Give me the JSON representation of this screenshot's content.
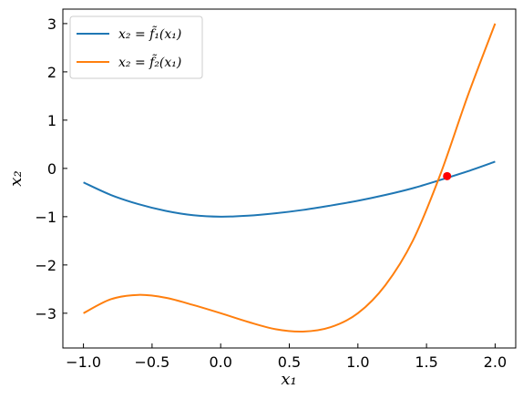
{
  "chart_data": {
    "type": "line",
    "xlabel": "x₁",
    "ylabel": "x₂",
    "xlim": [
      -1.15,
      2.15
    ],
    "ylim": [
      -3.72,
      3.3
    ],
    "xticks": [
      -1.0,
      -0.5,
      0.0,
      0.5,
      1.0,
      1.5,
      2.0
    ],
    "xtick_labels": [
      "−1.0",
      "−0.5",
      "0.0",
      "0.5",
      "1.0",
      "1.5",
      "2.0"
    ],
    "yticks": [
      -3,
      -2,
      -1,
      0,
      1,
      2,
      3
    ],
    "ytick_labels": [
      "−3",
      "−2",
      "−1",
      "0",
      "1",
      "2",
      "3"
    ],
    "grid": false,
    "legend_position": "top-left",
    "series": [
      {
        "name": "x₂ = f̃₁(x₁)",
        "color": "#1f77b4",
        "x": [
          -1.0,
          -0.8,
          -0.6,
          -0.4,
          -0.2,
          0.0,
          0.2,
          0.4,
          0.6,
          0.8,
          1.0,
          1.2,
          1.4,
          1.6,
          1.8,
          2.0
        ],
        "y": [
          -0.29,
          -0.55,
          -0.74,
          -0.88,
          -0.97,
          -1.0,
          -0.98,
          -0.93,
          -0.86,
          -0.77,
          -0.67,
          -0.55,
          -0.41,
          -0.24,
          -0.06,
          0.14
        ]
      },
      {
        "name": "x₂ = f̃₂(x₁)",
        "color": "#ff7f0e",
        "x": [
          -1.0,
          -0.8,
          -0.6,
          -0.4,
          -0.2,
          0.0,
          0.2,
          0.4,
          0.6,
          0.8,
          1.0,
          1.2,
          1.4,
          1.6,
          1.8,
          2.0
        ],
        "y": [
          -3.0,
          -2.71,
          -2.62,
          -2.68,
          -2.83,
          -3.0,
          -3.18,
          -3.33,
          -3.38,
          -3.29,
          -3.0,
          -2.42,
          -1.5,
          -0.13,
          1.5,
          3.0
        ]
      }
    ],
    "points": [
      {
        "x": 1.65,
        "y": -0.16,
        "color": "#ff0000"
      }
    ]
  }
}
